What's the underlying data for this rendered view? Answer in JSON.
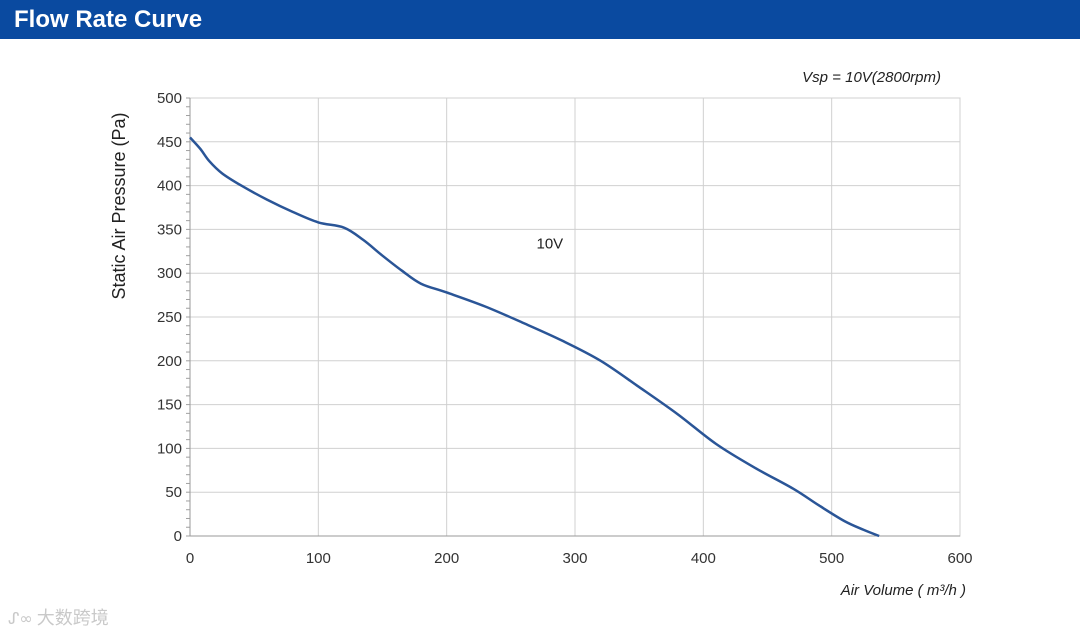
{
  "header": {
    "title": "Flow Rate Curve"
  },
  "watermark": {
    "logo": "ᔑ∞",
    "text": "大数跨境"
  },
  "chart_data": {
    "type": "line",
    "subtitle": "Vsp = 10V(2800rpm)",
    "xlabel": "Air Volume ( m³/h )",
    "ylabel": "Static Air Pressure  (Pa)",
    "xlim": [
      0,
      600
    ],
    "ylim": [
      0,
      500
    ],
    "x_ticks": [
      0,
      100,
      200,
      300,
      400,
      500,
      600
    ],
    "y_ticks": [
      0,
      50,
      100,
      150,
      200,
      250,
      300,
      350,
      400,
      450,
      500
    ],
    "grid": true,
    "line_color": "#2a5597",
    "annotations": [
      {
        "text": "10V",
        "x": 270,
        "y": 328
      }
    ],
    "series": [
      {
        "name": "10V",
        "x": [
          0,
          8,
          15,
          25,
          40,
          60,
          80,
          100,
          120,
          135,
          150,
          165,
          180,
          200,
          230,
          260,
          290,
          320,
          350,
          380,
          410,
          440,
          470,
          490,
          510,
          525,
          537
        ],
        "y": [
          455,
          442,
          428,
          414,
          400,
          384,
          370,
          358,
          352,
          338,
          320,
          303,
          288,
          278,
          262,
          243,
          223,
          200,
          170,
          139,
          105,
          78,
          54,
          35,
          17,
          7,
          0
        ]
      }
    ]
  }
}
